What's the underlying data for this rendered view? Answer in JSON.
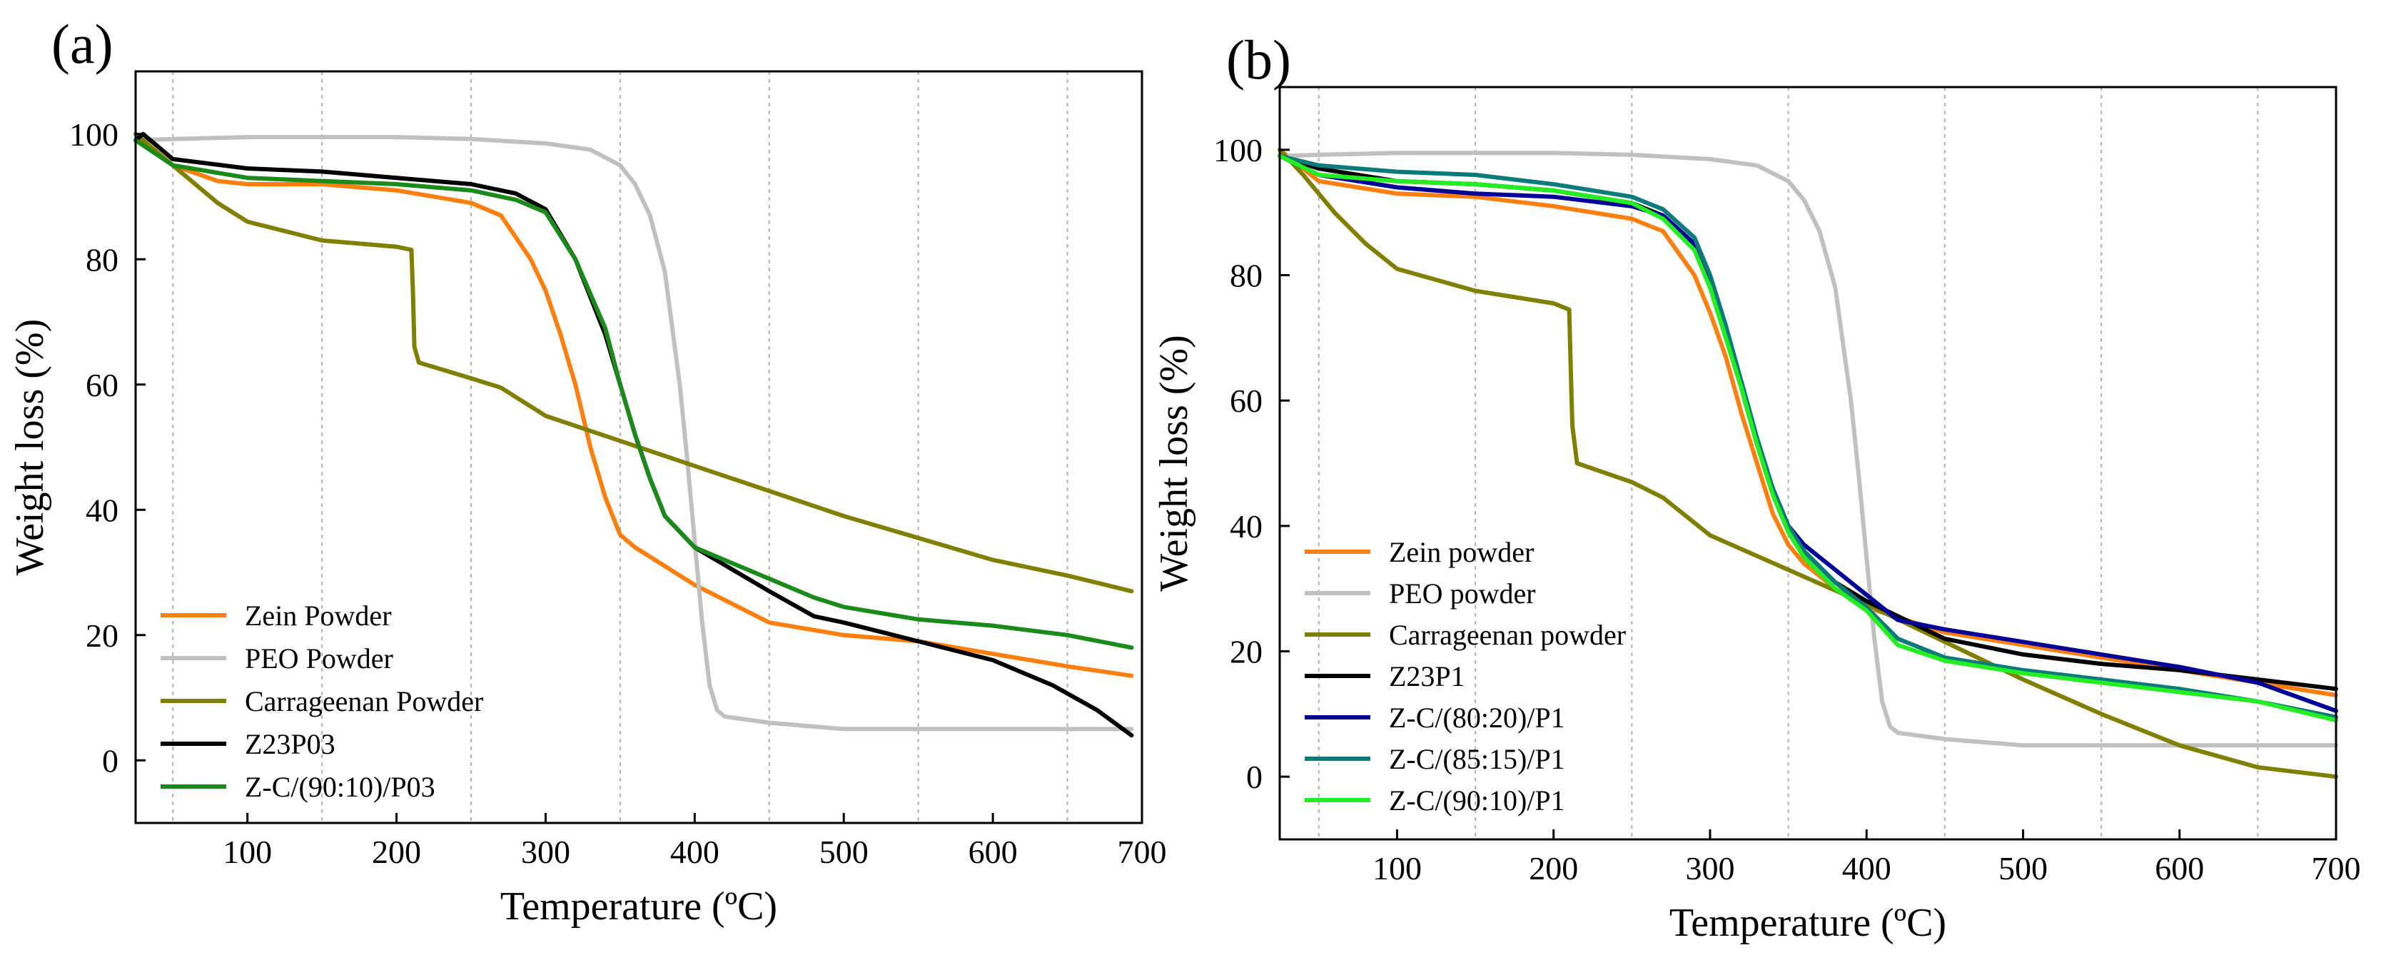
{
  "chart_data": [
    {
      "type": "line",
      "panel_label": "(a)",
      "xlabel": "Temperature (ºC)",
      "ylabel": "Weight loss (%)",
      "xlim": [
        25,
        700
      ],
      "ylim": [
        -10,
        110
      ],
      "xticks": [
        100,
        200,
        300,
        400,
        500,
        600,
        700
      ],
      "yticks": [
        0,
        20,
        40,
        60,
        80,
        100
      ],
      "gridlines_x": [
        50,
        150,
        250,
        350,
        450,
        550,
        650
      ],
      "legend_position": "bottom-left",
      "series": [
        {
          "name": "Zein Powder",
          "color": "#ff7f0e",
          "x": [
            25,
            50,
            80,
            100,
            150,
            200,
            250,
            270,
            290,
            300,
            310,
            320,
            330,
            340,
            350,
            360,
            380,
            400,
            450,
            500,
            550,
            600,
            650,
            693
          ],
          "y": [
            100,
            95,
            92.5,
            92,
            92,
            91,
            89,
            87,
            80,
            75,
            68,
            60,
            50,
            42,
            36,
            34,
            31,
            28,
            22,
            20,
            19,
            17,
            15,
            13.5
          ]
        },
        {
          "name": "PEO Powder",
          "color": "#c0c0c0",
          "x": [
            25,
            50,
            100,
            150,
            200,
            250,
            300,
            330,
            350,
            360,
            370,
            380,
            390,
            395,
            400,
            405,
            410,
            415,
            420,
            450,
            500,
            550,
            600,
            650,
            693
          ],
          "y": [
            99,
            99.2,
            99.5,
            99.5,
            99.5,
            99.2,
            98.5,
            97.5,
            95,
            92,
            87,
            78,
            60,
            48,
            35,
            22,
            12,
            8,
            7,
            6,
            5,
            5,
            5,
            5,
            5
          ]
        },
        {
          "name": "Carrageenan Powder",
          "color": "#808000",
          "x": [
            25,
            40,
            60,
            80,
            100,
            150,
            200,
            210,
            211,
            212,
            215,
            250,
            270,
            300,
            350,
            400,
            450,
            500,
            550,
            600,
            650,
            693
          ],
          "y": [
            100,
            97,
            93,
            89,
            86,
            83,
            82,
            81.5,
            75,
            66,
            63.5,
            61,
            59.5,
            55,
            51,
            47,
            43,
            39,
            35.5,
            32,
            29.5,
            27
          ]
        },
        {
          "name": "Z23P03",
          "color": "#000000",
          "x": [
            25,
            30,
            50,
            100,
            150,
            200,
            250,
            280,
            300,
            320,
            340,
            350,
            360,
            370,
            380,
            400,
            450,
            480,
            500,
            550,
            600,
            640,
            670,
            693
          ],
          "y": [
            99,
            100,
            96,
            94.5,
            94,
            93,
            92,
            90.5,
            88,
            80,
            68,
            60,
            52,
            45,
            39,
            34,
            27,
            23,
            22,
            19,
            16,
            12,
            8,
            4
          ]
        },
        {
          "name": "Z-C/(90:10)/P03",
          "color": "#1a8a1a",
          "x": [
            25,
            50,
            100,
            150,
            200,
            250,
            280,
            300,
            320,
            340,
            350,
            360,
            370,
            380,
            400,
            420,
            450,
            480,
            500,
            550,
            600,
            650,
            693
          ],
          "y": [
            99,
            95,
            93,
            92.5,
            92,
            91,
            89.5,
            87.5,
            80,
            69,
            60,
            52,
            45,
            39,
            34,
            32,
            29,
            26,
            24.5,
            22.5,
            21.5,
            20,
            18
          ]
        }
      ]
    },
    {
      "type": "line",
      "panel_label": "(b)",
      "xlabel": "Temperature (ºC)",
      "ylabel": "Weight loss (%)",
      "xlim": [
        25,
        700
      ],
      "ylim": [
        -10,
        110
      ],
      "xticks": [
        100,
        200,
        300,
        400,
        500,
        600,
        700
      ],
      "yticks": [
        0,
        20,
        40,
        60,
        80,
        100
      ],
      "gridlines_x": [
        50,
        150,
        250,
        350,
        450,
        550,
        650
      ],
      "legend_position": "bottom-left",
      "series": [
        {
          "name": "Zein powder",
          "color": "#ff7f0e",
          "x": [
            25,
            50,
            100,
            150,
            200,
            250,
            270,
            290,
            300,
            310,
            320,
            330,
            340,
            350,
            360,
            380,
            400,
            450,
            500,
            550,
            600,
            650,
            700
          ],
          "y": [
            100,
            95,
            93,
            92.5,
            91,
            89,
            87,
            80,
            74,
            67,
            58,
            50,
            42,
            37,
            34,
            30,
            27,
            23,
            21,
            19,
            17,
            15,
            13
          ]
        },
        {
          "name": "PEO powder",
          "color": "#c0c0c0",
          "x": [
            25,
            50,
            100,
            150,
            200,
            250,
            300,
            330,
            350,
            360,
            370,
            380,
            390,
            395,
            400,
            405,
            410,
            415,
            420,
            450,
            500,
            550,
            600,
            650,
            700
          ],
          "y": [
            99,
            99.2,
            99.5,
            99.5,
            99.5,
            99.2,
            98.5,
            97.5,
            95,
            92,
            87,
            78,
            60,
            48,
            35,
            22,
            12,
            8,
            7,
            6,
            5,
            5,
            5,
            5,
            5
          ]
        },
        {
          "name": "Carrageenan powder",
          "color": "#808000",
          "x": [
            25,
            40,
            60,
            80,
            100,
            150,
            200,
            210,
            211,
            212,
            215,
            250,
            270,
            300,
            350,
            400,
            450,
            500,
            550,
            600,
            650,
            700
          ],
          "y": [
            100,
            96,
            90,
            85,
            81,
            77.5,
            75.5,
            74.5,
            65,
            56,
            50,
            47,
            44.5,
            38.5,
            33,
            27.5,
            21.5,
            15.5,
            10,
            5,
            1.5,
            0
          ]
        },
        {
          "name": "Z23P1",
          "color": "#000000",
          "x": [
            25,
            50,
            100,
            150,
            200,
            250,
            270,
            290,
            300,
            310,
            320,
            330,
            340,
            350,
            360,
            380,
            400,
            450,
            500,
            550,
            600,
            650,
            700
          ],
          "y": [
            99,
            97,
            95,
            94.5,
            93.5,
            91.5,
            89.5,
            85,
            79,
            71,
            62,
            53,
            46,
            40,
            36,
            31,
            28,
            22,
            19.5,
            18,
            17,
            15.5,
            14
          ]
        },
        {
          "name": "Z-C/(80:20)/P1",
          "color": "#000099",
          "x": [
            25,
            50,
            100,
            150,
            200,
            250,
            270,
            290,
            300,
            310,
            320,
            330,
            340,
            350,
            360,
            380,
            400,
            420,
            450,
            500,
            550,
            600,
            650,
            700
          ],
          "y": [
            99,
            96,
            94,
            93,
            92.5,
            91,
            89.5,
            85,
            79,
            71,
            63,
            54,
            46,
            40,
            37,
            33,
            29,
            25,
            23.5,
            21.5,
            19.5,
            17.5,
            15,
            10.5
          ]
        },
        {
          "name": "Z-C/(85:15)/P1",
          "color": "#0a7a7a",
          "x": [
            25,
            50,
            100,
            150,
            200,
            250,
            270,
            290,
            300,
            310,
            320,
            330,
            340,
            350,
            360,
            380,
            400,
            420,
            450,
            500,
            550,
            600,
            650,
            700
          ],
          "y": [
            99,
            97.5,
            96.5,
            96,
            94.5,
            92.5,
            90.5,
            86,
            80,
            72,
            63,
            54,
            46,
            40,
            36,
            31,
            27,
            22,
            19,
            17,
            15.5,
            14,
            12,
            9.5
          ]
        },
        {
          "name": "Z-C/(90:10)/P1",
          "color": "#22ee22",
          "x": [
            25,
            50,
            100,
            150,
            200,
            250,
            270,
            290,
            300,
            310,
            320,
            330,
            340,
            350,
            360,
            380,
            400,
            420,
            450,
            500,
            550,
            600,
            650,
            700
          ],
          "y": [
            99,
            96,
            95,
            94.5,
            93.5,
            91.5,
            89,
            84,
            78,
            70,
            62,
            53,
            45,
            39,
            35,
            30,
            26.5,
            21,
            18.5,
            16.5,
            15,
            13.5,
            12,
            9
          ]
        }
      ]
    }
  ]
}
